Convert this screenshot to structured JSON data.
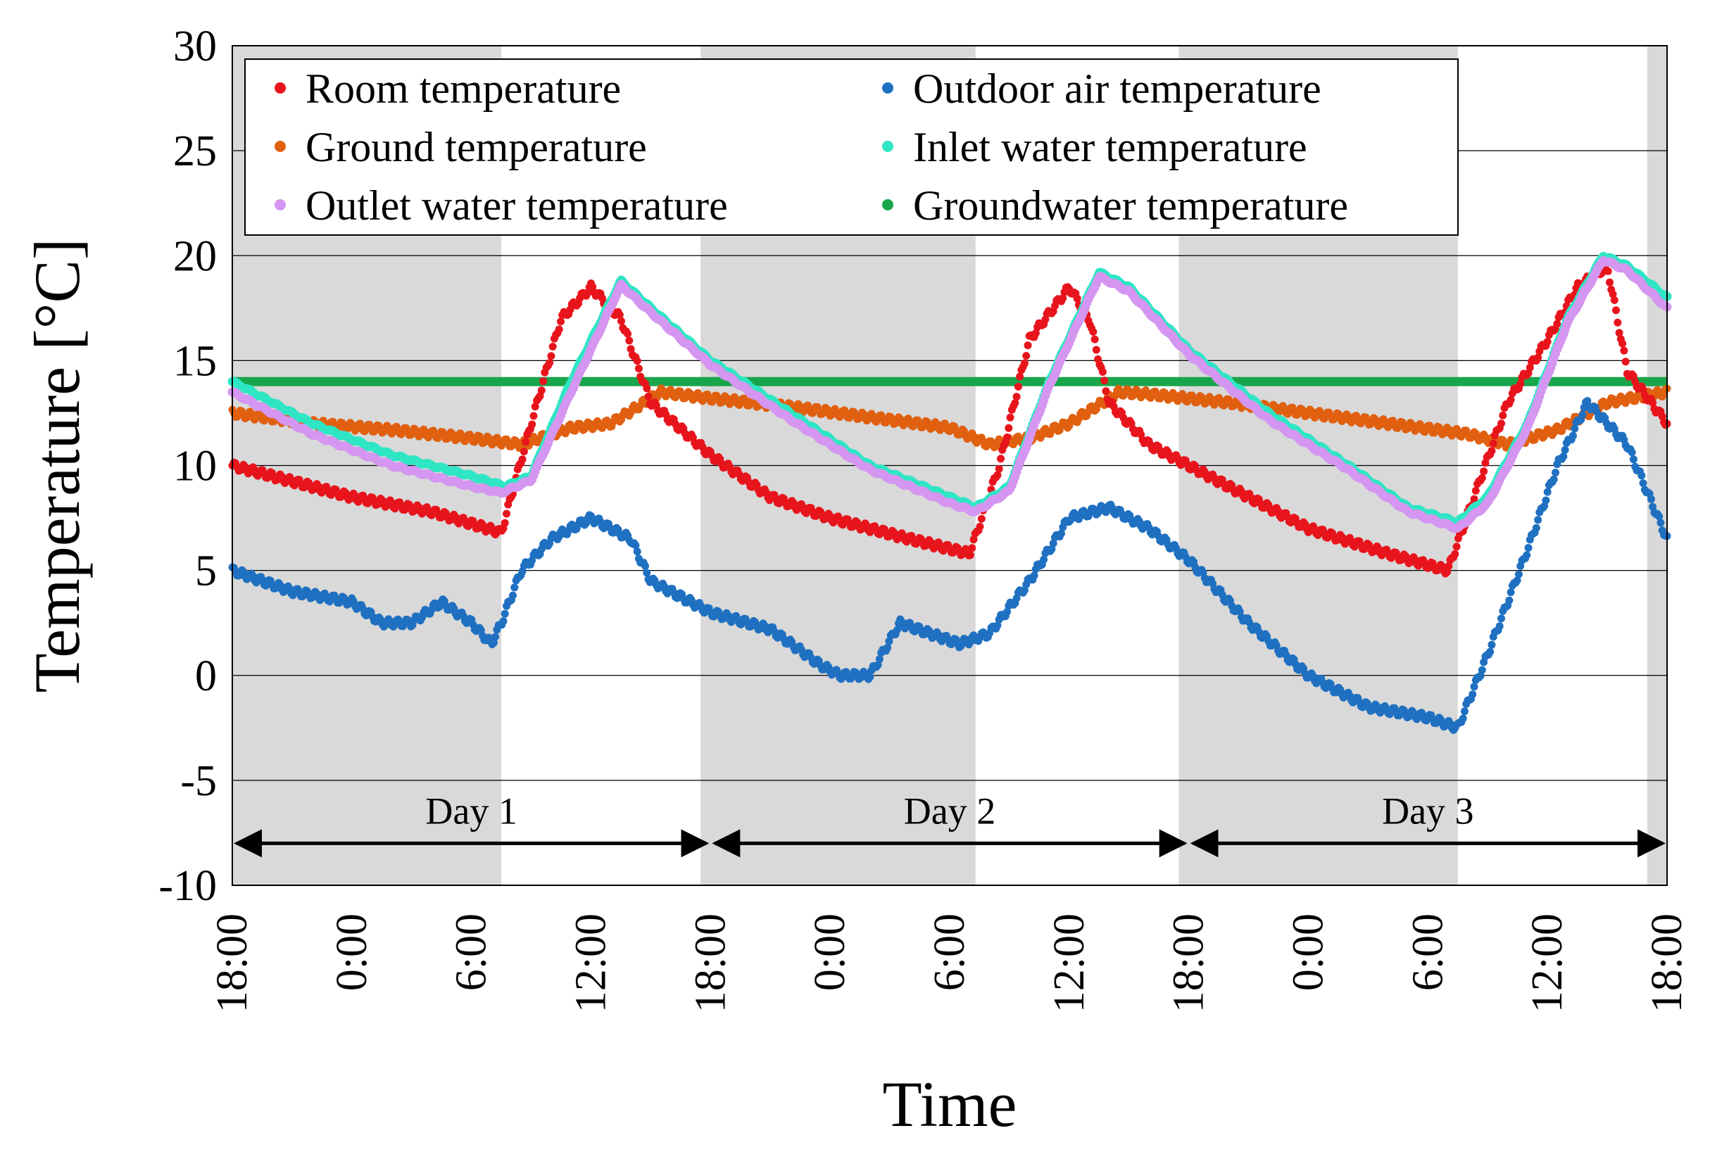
{
  "chart_data": {
    "type": "scatter",
    "title": "",
    "xlabel": "Time",
    "ylabel": "Temperature [°C]",
    "ylim": [
      -10,
      30
    ],
    "yticks": [
      30,
      25,
      20,
      15,
      10,
      5,
      0,
      -5,
      -10
    ],
    "xlim_hours": [
      0,
      72
    ],
    "xtick_labels": [
      "18:00",
      "0:00",
      "6:00",
      "12:00",
      "18:00",
      "0:00",
      "6:00",
      "12:00",
      "18:00",
      "0:00",
      "6:00",
      "12:00",
      "18:00"
    ],
    "xtick_hours": [
      0,
      6,
      12,
      18,
      24,
      30,
      36,
      42,
      48,
      54,
      60,
      66,
      72
    ],
    "grid": true,
    "legend_position": "top",
    "night_shading": [
      [
        0,
        13.5
      ],
      [
        23.5,
        37.3
      ],
      [
        47.5,
        61.5
      ],
      [
        71,
        72
      ]
    ],
    "days": [
      {
        "label": "Day 1",
        "start": 0,
        "end": 24
      },
      {
        "label": "Day 2",
        "start": 24,
        "end": 48
      },
      {
        "label": "Day 3",
        "start": 48,
        "end": 72
      }
    ],
    "series": [
      {
        "name": "Room temperature",
        "color": "#e8141c",
        "x": [
          0,
          6,
          10,
          13.5,
          15,
          16.5,
          18,
          19.5,
          21,
          24,
          27,
          30,
          34,
          37,
          38.5,
          40,
          42,
          43,
          44,
          46,
          48,
          51,
          54,
          58,
          61,
          62.5,
          64,
          66,
          67.5,
          69,
          70,
          72
        ],
        "y": [
          10,
          8.5,
          7.8,
          6.8,
          12,
          17,
          18.5,
          17,
          13,
          10.5,
          8.5,
          7.5,
          6.5,
          5.8,
          10,
          16,
          18.5,
          17,
          13,
          11,
          10,
          8.5,
          7,
          5.8,
          5,
          9,
          13,
          16,
          18.5,
          19.5,
          14.5,
          12
        ]
      },
      {
        "name": "Outdoor air temperature",
        "color": "#1f70c1",
        "x": [
          0,
          3,
          6,
          7.5,
          9,
          10.5,
          12,
          13,
          13.5,
          14.5,
          16,
          18,
          20,
          21,
          24,
          27,
          28.5,
          29.5,
          30.5,
          32,
          33.5,
          35,
          36.5,
          38,
          40,
          42,
          44,
          46,
          48,
          51,
          54,
          57,
          60,
          61.5,
          63,
          65,
          66.5,
          68,
          70,
          72
        ],
        "y": [
          5,
          4,
          3.5,
          2.5,
          2.5,
          3.5,
          2.5,
          1.5,
          2.5,
          5,
          6.5,
          7.5,
          6.5,
          4.5,
          3,
          2.2,
          1.2,
          0.5,
          0,
          0,
          2.5,
          2,
          1.5,
          2,
          4.5,
          7.5,
          8,
          7,
          5.5,
          2.5,
          0,
          -1.5,
          -2,
          -2.5,
          1,
          6,
          10,
          13,
          11,
          6.5
        ]
      },
      {
        "name": "Ground temperature",
        "color": "#e06010",
        "x": [
          0,
          4,
          8,
          12,
          14.5,
          17,
          19,
          21.5,
          24,
          28,
          32,
          36,
          38,
          40,
          42,
          44.5,
          46,
          50,
          54,
          58,
          62,
          64,
          66.5,
          69,
          72
        ],
        "y": [
          12.5,
          12,
          11.7,
          11.3,
          11,
          11.8,
          12,
          13.5,
          13.2,
          12.8,
          12.3,
          11.8,
          11,
          11.3,
          12,
          13.5,
          13.4,
          13,
          12.5,
          12,
          11.5,
          11,
          11.7,
          13,
          13.5
        ]
      },
      {
        "name": "Inlet water temperature",
        "color": "#2fe6c4",
        "x": [
          0,
          4,
          8,
          12,
          13.7,
          15,
          17,
          19.5,
          21,
          24,
          28,
          32,
          36,
          37.3,
          39,
          41,
          43.5,
          45,
          48,
          52,
          56,
          59,
          61.5,
          63,
          65,
          67,
          68.8,
          70,
          72
        ],
        "y": [
          14,
          12,
          10.5,
          9.5,
          9,
          9.5,
          14,
          18.8,
          17.5,
          15,
          12.5,
          10,
          8.5,
          8,
          9,
          14,
          19.2,
          18.5,
          15.5,
          12.5,
          10,
          8,
          7.3,
          8.5,
          12,
          17,
          20,
          19.5,
          18
        ]
      },
      {
        "name": "Outlet water temperature",
        "color": "#d496f0",
        "x": [
          0,
          4,
          8,
          12,
          13.5,
          15,
          17,
          19.5,
          21,
          24,
          28,
          32,
          36,
          37.3,
          39,
          41,
          43.5,
          45,
          48,
          52,
          56,
          59,
          61.5,
          63,
          65,
          67,
          68.8,
          70,
          72
        ],
        "y": [
          13.5,
          11.5,
          10,
          9,
          8.7,
          9.3,
          13.5,
          18.6,
          17.3,
          14.8,
          12.2,
          9.8,
          8.2,
          7.8,
          8.8,
          13.8,
          19,
          18.3,
          15.3,
          12.2,
          9.8,
          7.8,
          7,
          8.2,
          11.8,
          16.8,
          19.8,
          19.3,
          17.5
        ]
      },
      {
        "name": "Groundwater temperature",
        "color": "#19a64a",
        "x": [
          0,
          72
        ],
        "y": [
          14,
          14
        ]
      }
    ]
  }
}
